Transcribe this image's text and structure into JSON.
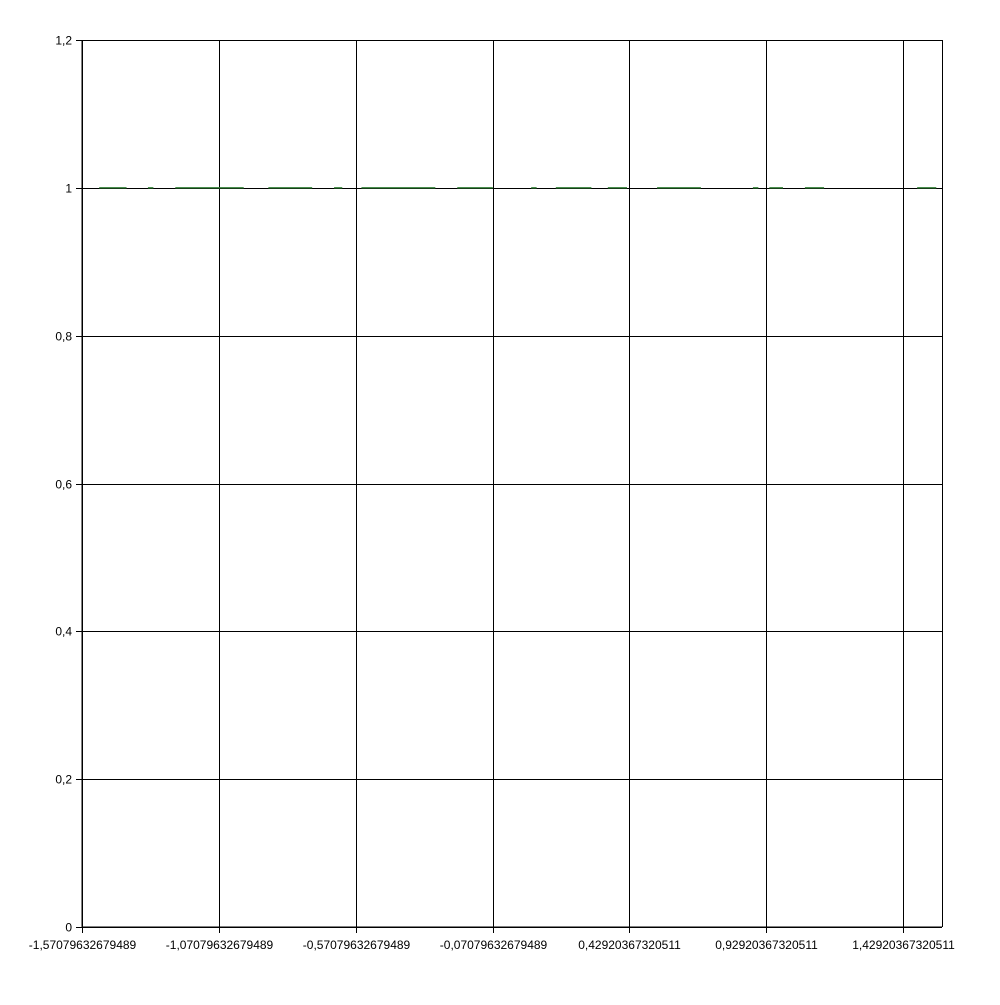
{
  "chart_data": {
    "type": "line",
    "title": "",
    "xlabel": "",
    "ylabel": "",
    "xlim": [
      -1.5707963267949,
      1.5707963267949
    ],
    "ylim": [
      0,
      1.2
    ],
    "grid": true,
    "legend": "none",
    "x_ticks": [
      {
        "value": -1.57079632679489,
        "label": "-1,57079632679489"
      },
      {
        "value": -1.07079632679489,
        "label": "-1,07079632679489"
      },
      {
        "value": -0.57079632679489,
        "label": "-0,57079632679489"
      },
      {
        "value": -0.07079632679489,
        "label": "-0,07079632679489"
      },
      {
        "value": 0.42920367320511,
        "label": "0,42920367320511"
      },
      {
        "value": 0.92920367320511,
        "label": "0,92920367320511"
      },
      {
        "value": 1.42920367320511,
        "label": "1,42920367320511"
      }
    ],
    "y_ticks": [
      {
        "value": 0,
        "label": "0"
      },
      {
        "value": 0.2,
        "label": "0,2"
      },
      {
        "value": 0.4,
        "label": "0,4"
      },
      {
        "value": 0.6,
        "label": "0,6"
      },
      {
        "value": 0.8,
        "label": "0,8"
      },
      {
        "value": 1,
        "label": "1"
      },
      {
        "value": 1.2,
        "label": "1,2"
      }
    ],
    "series": [
      {
        "color": "#2e7d32",
        "style": "dashed",
        "segments": [
          [
            -1.508,
            -1.408
          ],
          [
            -1.33,
            -1.31
          ],
          [
            -1.23,
            -0.98
          ],
          [
            -0.89,
            -0.73
          ],
          [
            -0.65,
            -0.62
          ],
          [
            -0.55,
            -0.28
          ],
          [
            -0.2,
            -0.07
          ],
          [
            0.07,
            0.09
          ],
          [
            0.16,
            0.29
          ],
          [
            0.35,
            0.42
          ],
          [
            0.53,
            0.69
          ],
          [
            0.88,
            0.9
          ],
          [
            0.94,
            0.99
          ],
          [
            1.07,
            1.14
          ],
          [
            1.48,
            1.55
          ]
        ],
        "y": 1
      }
    ]
  }
}
